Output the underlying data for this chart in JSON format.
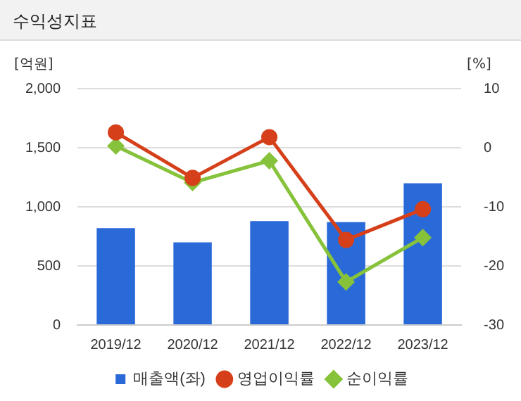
{
  "chart_data": {
    "type": "bar",
    "title": "수익성지표",
    "ylabel": "[억원]",
    "y2label": "[%]",
    "categories": [
      "2019/12",
      "2020/12",
      "2021/12",
      "2022/12",
      "2023/12"
    ],
    "series": [
      {
        "name": "매출액(좌)",
        "color": "#2a6ad8",
        "values": [
          820,
          700,
          880,
          870,
          1200
        ]
      },
      {
        "name": "영업이익률",
        "type": "line",
        "axis": "y2",
        "marker": "circle",
        "color": "#d5401a",
        "values": [
          2.6,
          -5.1,
          1.8,
          -15.6,
          -10.4
        ]
      },
      {
        "name": "순이익률",
        "type": "line",
        "axis": "y2",
        "marker": "diamond",
        "color": "#86c23a",
        "values": [
          0.3,
          -5.9,
          -2.2,
          -22.7,
          -15.2
        ]
      }
    ],
    "ylim": [
      0,
      2000
    ],
    "yticks": [
      0,
      500,
      {
        "value": 1000,
        "label": "1,000"
      },
      {
        "value": 1500,
        "label": "1,500"
      },
      {
        "value": 2000,
        "label": "2,000"
      }
    ],
    "y2lim": [
      -30,
      10
    ],
    "y2ticks": [
      -30,
      -20,
      -10,
      0,
      10
    ],
    "grid": "y",
    "legend": "bottom"
  }
}
